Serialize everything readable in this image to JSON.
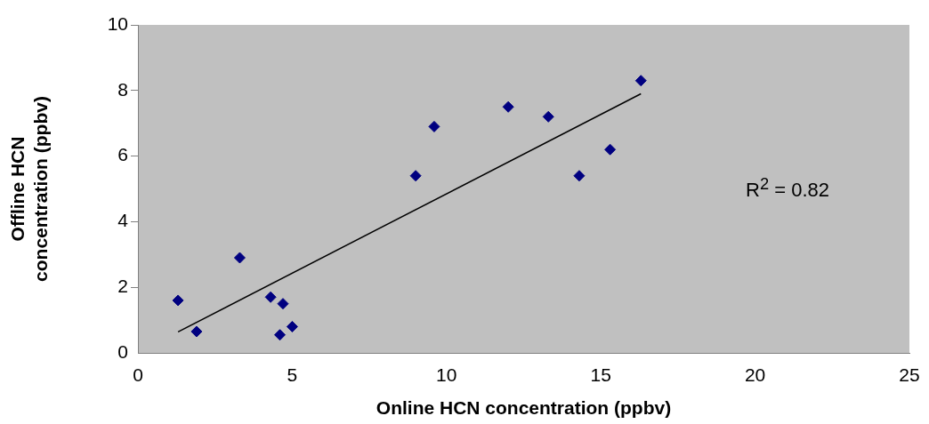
{
  "chart_data": {
    "type": "scatter",
    "xlabel": "Online HCN concentration (ppbv)",
    "ylabel": "Offline HCN\nconcentration (ppbv)",
    "xlim": [
      0,
      25
    ],
    "xticks": [
      0,
      5,
      10,
      15,
      20,
      25
    ],
    "ylim": [
      0,
      10
    ],
    "yticks": [
      0,
      2,
      4,
      6,
      8,
      10
    ],
    "grid": false,
    "legend": false,
    "marker": "diamond",
    "series": [
      {
        "type": "scatter",
        "color": "#000080",
        "x": [
          1.3,
          1.9,
          3.3,
          4.3,
          4.7,
          4.6,
          5.0,
          9.0,
          9.6,
          12.0,
          13.3,
          14.3,
          15.3,
          16.3
        ],
        "values": [
          1.6,
          0.65,
          2.9,
          1.7,
          1.5,
          0.55,
          0.8,
          5.4,
          6.9,
          7.5,
          7.2,
          5.4,
          6.2,
          8.3
        ]
      },
      {
        "type": "line",
        "color": "#000000",
        "marker": "none",
        "x": [
          1.3,
          16.3
        ],
        "values": [
          0.64,
          7.9
        ]
      }
    ],
    "annotations": [
      "R$^{2}$ = 0.82"
    ]
  }
}
